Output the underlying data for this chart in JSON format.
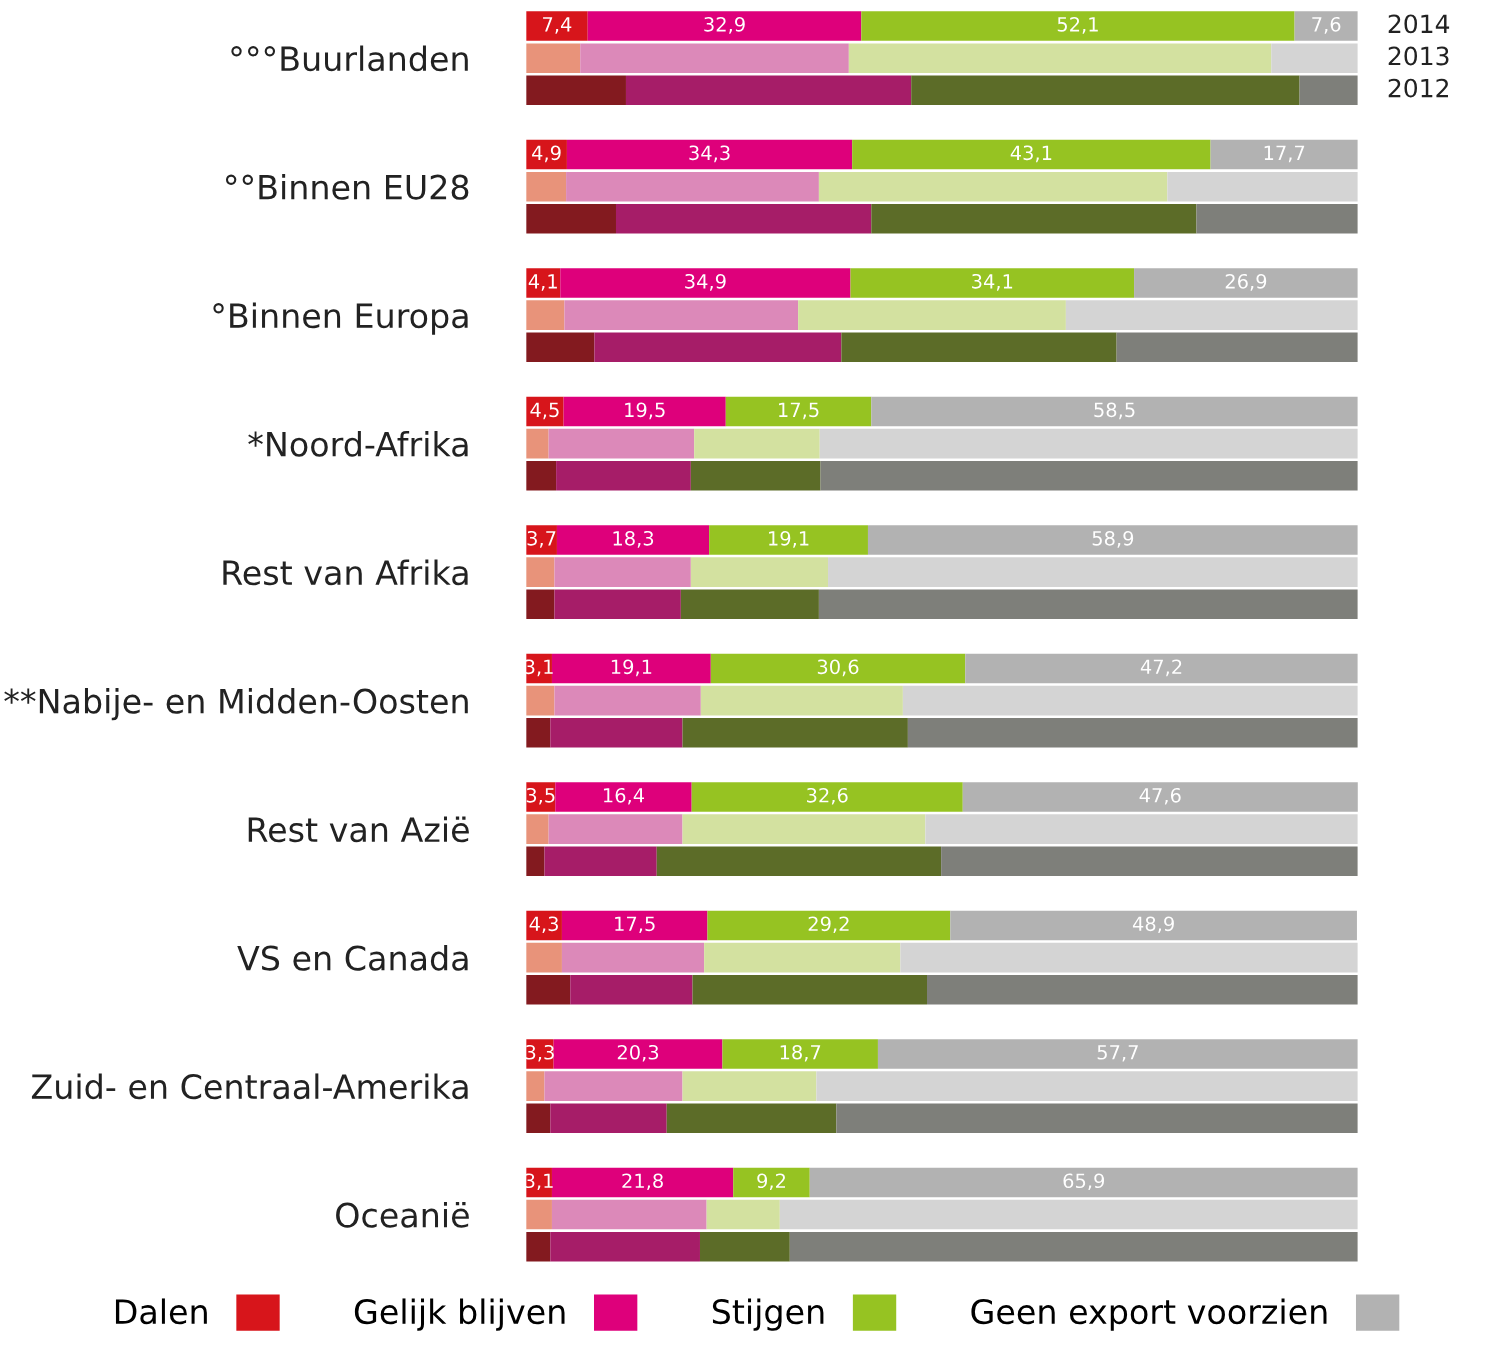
{
  "chart_data": {
    "type": "bar",
    "orientation": "horizontal",
    "stacked": true,
    "categories": [
      null,
      "°°°Buurlanden",
      null,
      null,
      "°°Binnen EU28",
      null,
      null,
      "°Binnen Europa",
      null,
      null,
      "*Noord-Afrika",
      null,
      null,
      "Rest van Afrika",
      null,
      null,
      "**Nabije- en Midden-Oosten",
      null,
      null,
      "Rest van Azië",
      null,
      null,
      "VS en Canada",
      null,
      null,
      "Zuid- en Centraal-Amerika",
      null,
      null,
      "Oceanië",
      null
    ],
    "xlim": [
      0,
      100
    ],
    "tick_labels": "y",
    "grid": false,
    "legend": "bottom",
    "annotations": [
      "2014",
      "2013",
      "2012"
    ],
    "series": [
      {
        "name": "Dalen",
        "color": "#d7151b",
        "colors": [
          "#d7151b",
          "#e8937a",
          "#831a1f",
          "#d7151b",
          "#e8937a",
          "#831a1f",
          "#d7151b",
          "#e8937a",
          "#831a1f",
          "#d7151b",
          "#e8937a",
          "#831a1f",
          "#d7151b",
          "#e8937a",
          "#831a1f",
          "#d7151b",
          "#e8937a",
          "#831a1f",
          "#d7151b",
          "#e8937a",
          "#831a1f",
          "#d7151b",
          "#e8937a",
          "#831a1f",
          "#d7151b",
          "#e8937a",
          "#831a1f",
          "#d7151b",
          "#e8937a",
          "#831a1f"
        ],
        "values": [
          7.4,
          6.5,
          12.0,
          4.9,
          4.8,
          10.8,
          4.1,
          4.6,
          8.2,
          4.5,
          2.7,
          3.6,
          3.7,
          3.4,
          3.4,
          3.1,
          3.4,
          2.9,
          3.5,
          2.7,
          2.2,
          4.3,
          4.3,
          5.3,
          3.3,
          2.2,
          2.9,
          3.1,
          3.1,
          2.9
        ],
        "value_labels": [
          "7,4",
          null,
          null,
          "4,9",
          null,
          null,
          "4,1",
          null,
          null,
          "4,5",
          null,
          null,
          "3,7",
          null,
          null,
          "3,1",
          null,
          null,
          "3,5",
          null,
          null,
          "4,3",
          null,
          null,
          "3,3",
          null,
          null,
          "3,1",
          null,
          null
        ]
      },
      {
        "name": "Gelijk blijven",
        "color": "#de007b",
        "colors": [
          "#de007b",
          "#dc89b9",
          "#a61d68",
          "#de007b",
          "#dc89b9",
          "#a61d68",
          "#de007b",
          "#dc89b9",
          "#a61d68",
          "#de007b",
          "#dc89b9",
          "#a61d68",
          "#de007b",
          "#dc89b9",
          "#a61d68",
          "#de007b",
          "#dc89b9",
          "#a61d68",
          "#de007b",
          "#dc89b9",
          "#a61d68",
          "#de007b",
          "#dc89b9",
          "#a61d68",
          "#de007b",
          "#dc89b9",
          "#a61d68",
          "#de007b",
          "#dc89b9",
          "#a61d68"
        ],
        "values": [
          32.9,
          32.3,
          34.3,
          34.3,
          30.4,
          30.7,
          34.9,
          28.1,
          29.7,
          19.5,
          17.5,
          16.2,
          18.3,
          16.4,
          15.2,
          19.1,
          17.6,
          15.9,
          16.4,
          16.1,
          13.5,
          17.5,
          17.1,
          14.7,
          20.3,
          16.6,
          14.0,
          21.8,
          18.6,
          18.0
        ],
        "value_labels": [
          "32,9",
          null,
          null,
          "34,3",
          null,
          null,
          "34,9",
          null,
          null,
          "19,5",
          null,
          null,
          "18,3",
          null,
          null,
          "19,1",
          null,
          null,
          "16,4",
          null,
          null,
          "17,5",
          null,
          null,
          "20,3",
          null,
          null,
          "21,8",
          null,
          null
        ]
      },
      {
        "name": "Stijgen",
        "color": "#96c322",
        "colors": [
          "#96c322",
          "#d3e1a0",
          "#5c6c28",
          "#96c322",
          "#d3e1a0",
          "#5c6c28",
          "#96c322",
          "#d3e1a0",
          "#5c6c28",
          "#96c322",
          "#d3e1a0",
          "#5c6c28",
          "#96c322",
          "#d3e1a0",
          "#5c6c28",
          "#96c322",
          "#d3e1a0",
          "#5c6c28",
          "#96c322",
          "#d3e1a0",
          "#5c6c28",
          "#96c322",
          "#d3e1a0",
          "#5c6c28",
          "#96c322",
          "#d3e1a0",
          "#5c6c28",
          "#96c322",
          "#d3e1a0",
          "#5c6c28"
        ],
        "values": [
          52.1,
          50.8,
          46.7,
          43.1,
          41.9,
          39.1,
          34.1,
          32.2,
          33.1,
          17.5,
          15.1,
          15.6,
          19.1,
          16.5,
          16.6,
          30.6,
          24.3,
          27.1,
          32.6,
          29.2,
          34.2,
          29.2,
          23.6,
          28.2,
          18.7,
          16.1,
          20.4,
          9.2,
          8.8,
          10.8
        ],
        "value_labels": [
          "52,1",
          null,
          null,
          "43,1",
          null,
          null,
          "34,1",
          null,
          null,
          "17,5",
          null,
          null,
          "19,1",
          null,
          null,
          "30,6",
          null,
          null,
          "32,6",
          null,
          null,
          "29,2",
          null,
          null,
          "18,7",
          null,
          null,
          "9,2",
          null,
          null
        ]
      },
      {
        "name": "Geen export voorzien",
        "color": "#b2b2b2",
        "colors": [
          "#b2b2b2",
          "#d4d4d4",
          "#7e7f7a",
          "#b2b2b2",
          "#d4d4d4",
          "#7e7f7a",
          "#b2b2b2",
          "#d4d4d4",
          "#7e7f7a",
          "#b2b2b2",
          "#d4d4d4",
          "#7e7f7a",
          "#b2b2b2",
          "#d4d4d4",
          "#7e7f7a",
          "#b2b2b2",
          "#d4d4d4",
          "#7e7f7a",
          "#b2b2b2",
          "#d4d4d4",
          "#7e7f7a",
          "#b2b2b2",
          "#d4d4d4",
          "#7e7f7a",
          "#b2b2b2",
          "#d4d4d4",
          "#7e7f7a",
          "#b2b2b2",
          "#d4d4d4",
          "#7e7f7a"
        ],
        "values": [
          7.6,
          10.4,
          7.0,
          17.7,
          22.9,
          19.4,
          26.9,
          35.1,
          29.0,
          58.5,
          64.7,
          64.6,
          58.9,
          63.7,
          64.8,
          47.2,
          54.7,
          54.1,
          47.6,
          52.0,
          50.1,
          48.9,
          55.0,
          51.8,
          57.7,
          65.1,
          62.7,
          65.9,
          69.5,
          68.3
        ],
        "value_labels": [
          "7,6",
          null,
          null,
          "17,7",
          null,
          null,
          "26,9",
          null,
          null,
          "58,5",
          null,
          null,
          "58,9",
          null,
          null,
          "47,2",
          null,
          null,
          "47,6",
          null,
          null,
          "48,9",
          null,
          null,
          "57,7",
          null,
          null,
          "65,9",
          null,
          null
        ]
      }
    ]
  }
}
